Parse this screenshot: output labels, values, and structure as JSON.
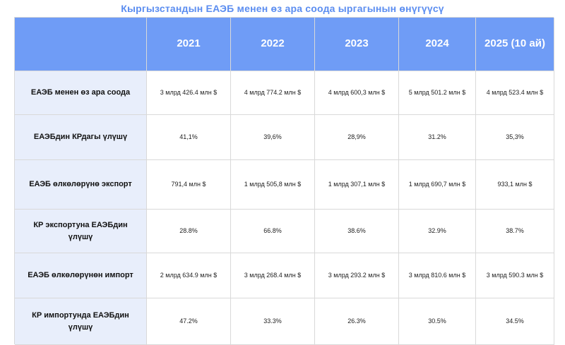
{
  "title": "Кыргызстандын ЕАЭБ менен өз ара соода ыргагынын өнүгүүсү",
  "header": {
    "corner": "",
    "years": [
      "2021",
      "2022",
      "2023",
      "2024",
      "2025 (10 ай)"
    ]
  },
  "rows": [
    {
      "label": "ЕАЭБ менен өз ара соода",
      "values": [
        "3 млрд 426.4 млн $",
        "4 млрд 774.2 млн $",
        "4 млрд 600,3 млн $",
        "5 млрд 501.2 млн $",
        "4 млрд 523.4 млн $"
      ]
    },
    {
      "label": "ЕАЭБдин КРдагы үлүшү",
      "values": [
        "41,1%",
        "39,6%",
        "28,9%",
        "31.2%",
        "35,3%"
      ]
    },
    {
      "label": "ЕАЭБ өлкөлөрүнө экспорт",
      "values": [
        "791,4 млн $",
        "1 млрд 505,8 млн $",
        "1 млрд 307,1 млн $",
        "1 млрд 690,7 млн $",
        "933,1 млн $"
      ]
    },
    {
      "label": "КР экспортуна ЕАЭБдин үлүшү",
      "values": [
        "28.8%",
        "66.8%",
        "38.6%",
        "32.9%",
        "38.7%"
      ]
    },
    {
      "label": "ЕАЭБ өлкөлөрүнөн импорт",
      "values": [
        "2 млрд 634.9 млн $",
        "3 млрд 268.4 млн $",
        "3 млрд 293.2 млн $",
        "3 млрд 810.6 млн $",
        "3 млрд 590.3 млн $"
      ]
    },
    {
      "label": "КР импортунда ЕАЭБдин үлүшү",
      "values": [
        "47.2%",
        "33.3%",
        "26.3%",
        "30.5%",
        "34.5%"
      ]
    }
  ]
}
